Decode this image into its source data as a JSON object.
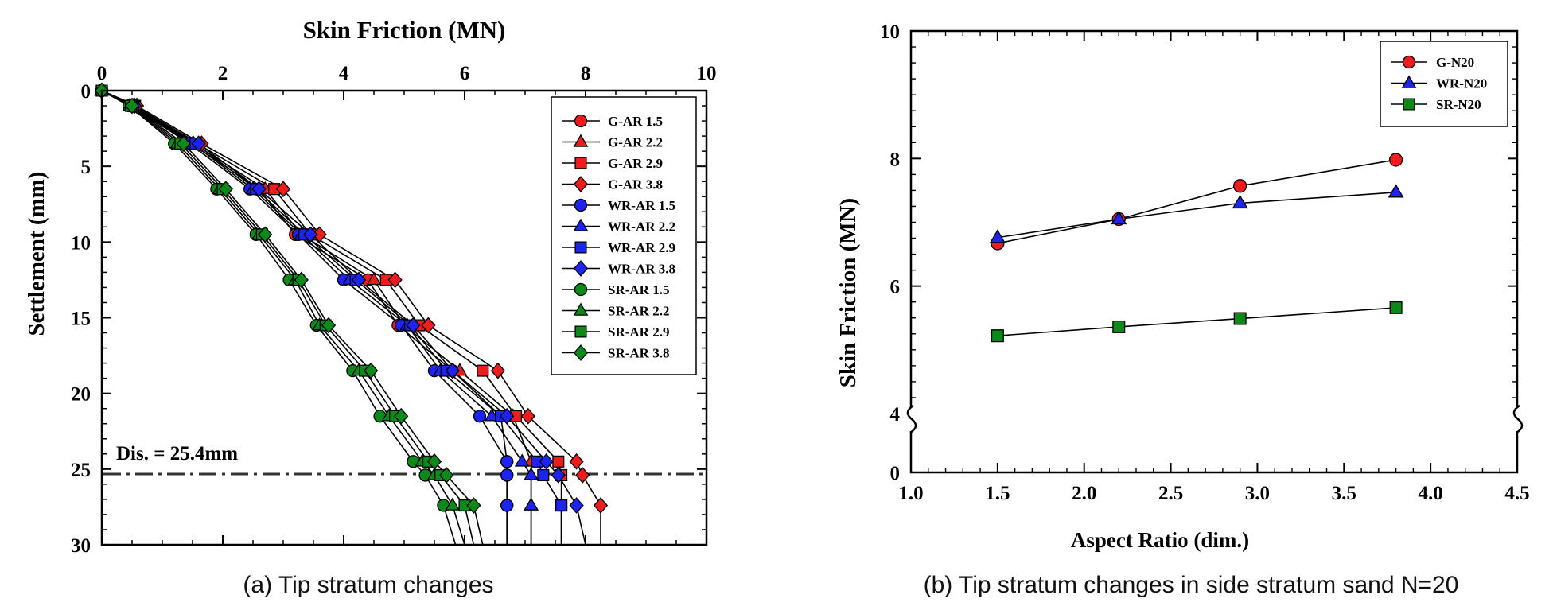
{
  "chart_data": [
    {
      "type": "line",
      "title": "Skin Friction (MN)",
      "xlabel": "Skin Friction (MN)",
      "ylabel": "Settlement (mm)",
      "xlim": [
        0,
        10
      ],
      "ylim": [
        30,
        0
      ],
      "x_axis_position": "top",
      "y_inverted": true,
      "xticks": [
        "0",
        "2",
        "4",
        "6",
        "8",
        "10"
      ],
      "yticks": [
        "0",
        "5",
        "10",
        "15",
        "20",
        "25",
        "30"
      ],
      "grid": false,
      "legend_position": "top-right",
      "caption": "(a) Tip stratum changes",
      "annotations": [
        {
          "text": "Dis. = 25.4mm",
          "type": "horizontal-dash-dot-line",
          "y": 25.4
        }
      ],
      "y_points": [
        0,
        1,
        3.5,
        6.5,
        9.5,
        12.5,
        15.5,
        18.5,
        21.5,
        24.5,
        25.4,
        27.4
      ],
      "series": [
        {
          "name": "G-AR 1.5",
          "group": "G",
          "color": "#ee1c1c",
          "marker": "circle",
          "x": [
            0,
            0.5,
            1.48,
            2.6,
            3.2,
            4.4,
            4.9,
            5.8,
            6.6,
            6.7,
            6.7,
            6.7
          ],
          "end_x": 6.7
        },
        {
          "name": "G-AR 2.2",
          "group": "G",
          "color": "#ee1c1c",
          "marker": "triangle",
          "x": [
            0,
            0.52,
            1.52,
            2.7,
            3.3,
            4.5,
            5.0,
            5.92,
            6.8,
            7.1,
            7.1,
            7.1
          ],
          "end_x": 7.1
        },
        {
          "name": "G-AR 2.9",
          "group": "G",
          "color": "#ee1c1c",
          "marker": "square",
          "x": [
            0,
            0.55,
            1.58,
            2.85,
            3.45,
            4.7,
            5.25,
            6.3,
            6.85,
            7.55,
            7.6,
            7.6
          ],
          "end_x": 7.6
        },
        {
          "name": "G-AR 3.8",
          "group": "G",
          "color": "#ee1c1c",
          "marker": "diamond",
          "x": [
            0,
            0.58,
            1.65,
            3.0,
            3.6,
            4.85,
            5.4,
            6.55,
            7.05,
            7.85,
            7.95,
            8.25
          ],
          "end_x": 8.25
        },
        {
          "name": "WR-AR 1.5",
          "group": "WR",
          "color": "#1d23f0",
          "marker": "circle",
          "x": [
            0,
            0.48,
            1.45,
            2.45,
            3.25,
            4.0,
            4.95,
            5.5,
            6.25,
            6.7,
            6.7,
            6.7
          ],
          "end_x": 6.7
        },
        {
          "name": "WR-AR 2.2",
          "group": "WR",
          "color": "#1d23f0",
          "marker": "triangle",
          "x": [
            0,
            0.5,
            1.5,
            2.5,
            3.3,
            4.1,
            5.05,
            5.6,
            6.45,
            6.95,
            7.1,
            7.1
          ],
          "end_x": 7.1
        },
        {
          "name": "WR-AR 2.9",
          "group": "WR",
          "color": "#1d23f0",
          "marker": "square",
          "x": [
            0,
            0.52,
            1.55,
            2.55,
            3.35,
            4.2,
            5.1,
            5.7,
            6.6,
            7.2,
            7.3,
            7.6
          ],
          "end_x": 7.6
        },
        {
          "name": "WR-AR 3.8",
          "group": "WR",
          "color": "#1d23f0",
          "marker": "diamond",
          "x": [
            0,
            0.54,
            1.6,
            2.6,
            3.45,
            4.25,
            5.15,
            5.8,
            6.7,
            7.35,
            7.55,
            7.85
          ],
          "end_x": 8.0
        },
        {
          "name": "SR-AR 1.5",
          "group": "SR",
          "color": "#0b8a19",
          "marker": "circle",
          "x": [
            0,
            0.45,
            1.2,
            1.9,
            2.55,
            3.1,
            3.55,
            4.15,
            4.6,
            5.15,
            5.35,
            5.65
          ],
          "end_x": 5.85
        },
        {
          "name": "SR-AR 2.2",
          "group": "SR",
          "color": "#0b8a19",
          "marker": "triangle",
          "x": [
            0,
            0.46,
            1.25,
            1.95,
            2.6,
            3.2,
            3.6,
            4.25,
            4.75,
            5.3,
            5.5,
            5.8
          ],
          "end_x": 6.0
        },
        {
          "name": "SR-AR 2.9",
          "group": "SR",
          "color": "#0b8a19",
          "marker": "square",
          "x": [
            0,
            0.48,
            1.3,
            2.0,
            2.65,
            3.25,
            3.7,
            4.35,
            4.85,
            5.4,
            5.6,
            6.0
          ],
          "end_x": 6.15
        },
        {
          "name": "SR-AR 3.8",
          "group": "SR",
          "color": "#0b8a19",
          "marker": "diamond",
          "x": [
            0,
            0.5,
            1.35,
            2.05,
            2.7,
            3.3,
            3.75,
            4.45,
            4.95,
            5.5,
            5.7,
            6.15
          ],
          "end_x": 6.3
        }
      ]
    },
    {
      "type": "line",
      "xlabel": "Aspect Ratio (dim.)",
      "ylabel": "Skin Friction (MN)",
      "xlim": [
        1.0,
        4.5
      ],
      "ylim": [
        0,
        10
      ],
      "axis_break": "between 0 and 4",
      "xticks": [
        "1.0",
        "1.5",
        "2.0",
        "2.5",
        "3.0",
        "3.5",
        "4.0",
        "4.5"
      ],
      "yticks": [
        "0",
        "4",
        "6",
        "8",
        "10"
      ],
      "grid": false,
      "legend_position": "top-right",
      "caption": "(b) Tip stratum changes in side stratum sand N=20",
      "x": [
        1.5,
        2.2,
        2.9,
        3.8
      ],
      "series": [
        {
          "name": "G-N20",
          "color": "#ee1c1c",
          "marker": "circle",
          "values": [
            6.67,
            7.05,
            7.57,
            7.98
          ]
        },
        {
          "name": "WR-N20",
          "color": "#1d23f0",
          "marker": "triangle",
          "values": [
            6.76,
            7.05,
            7.3,
            7.47
          ]
        },
        {
          "name": "SR-N20",
          "color": "#0b8a19",
          "marker": "square",
          "values": [
            5.22,
            5.36,
            5.49,
            5.66
          ]
        }
      ]
    }
  ]
}
